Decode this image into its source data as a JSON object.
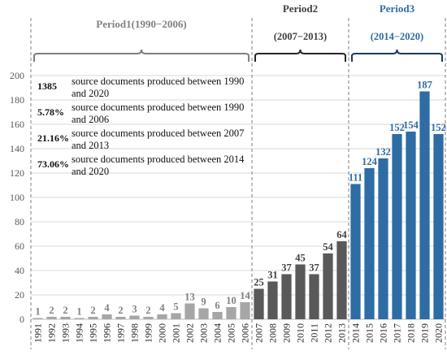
{
  "chart_data": {
    "type": "bar",
    "categories": [
      "1991",
      "1992",
      "1993",
      "1994",
      "1995",
      "1996",
      "1997",
      "1998",
      "1999",
      "2000",
      "2001",
      "2002",
      "2003",
      "2004",
      "2005",
      "2006",
      "2007",
      "2008",
      "2009",
      "2010",
      "2011",
      "2012",
      "2013",
      "2014",
      "2015",
      "2016",
      "2017",
      "2018",
      "2019",
      "2020"
    ],
    "values": [
      1,
      2,
      2,
      1,
      2,
      4,
      2,
      3,
      2,
      4,
      5,
      13,
      9,
      6,
      10,
      14,
      25,
      31,
      37,
      45,
      37,
      54,
      64,
      111,
      124,
      132,
      152,
      154,
      187,
      152
    ],
    "ylim": [
      0,
      200
    ],
    "yticks": [
      "0",
      "20",
      "40",
      "60",
      "80",
      "100",
      "120",
      "140",
      "160",
      "180",
      "200"
    ],
    "grid": true,
    "periods": [
      {
        "label": "Period1(1990−2006)",
        "range_label": "",
        "first": 0,
        "last": 15,
        "color": "#a6a6a6",
        "label_color": "#808080",
        "bracket_color": "#7f7f7f"
      },
      {
        "label": "Period2",
        "range_label": "(2007−2013)",
        "first": 16,
        "last": 22,
        "color": "#595959",
        "label_color": "#404040",
        "bracket_color": "#262626"
      },
      {
        "label": "Period3",
        "range_label": "(2014−2020)",
        "first": 23,
        "last": 29,
        "color": "#2e6ca4",
        "label_color": "#2e6ca4",
        "bracket_color": "#1f3864"
      }
    ]
  },
  "stats": [
    {
      "value": "1385",
      "desc": "source documents produced between 1990 and 2020"
    },
    {
      "value": "5.78%",
      "desc": "source documents produced between 1990 and 2006"
    },
    {
      "value": "21.16%",
      "desc": "source documents produced between 2007 and 2013"
    },
    {
      "value": "73.06%",
      "desc": "source documents produced between 2014 and 2020"
    }
  ]
}
